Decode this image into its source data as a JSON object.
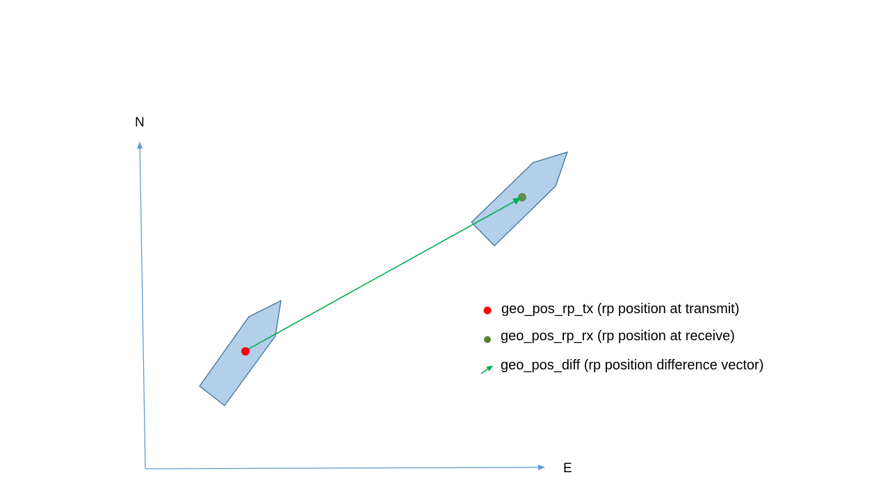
{
  "axes": {
    "north_label": "N",
    "east_label": "E"
  },
  "legend": {
    "tx": {
      "label": "geo_pos_rp_tx (rp position at transmit)"
    },
    "rx": {
      "label": "geo_pos_rp_rx (rp position at receive)"
    },
    "diff": {
      "label": "geo_pos_diff (rp position difference vector)"
    }
  },
  "colors": {
    "axis": "#5b9bd5",
    "ship_fill": "#b4cfe9",
    "ship_stroke": "#41719c",
    "tx_point": "#ff0000",
    "rx_point": "#548235",
    "diff_vector": "#00b050"
  }
}
